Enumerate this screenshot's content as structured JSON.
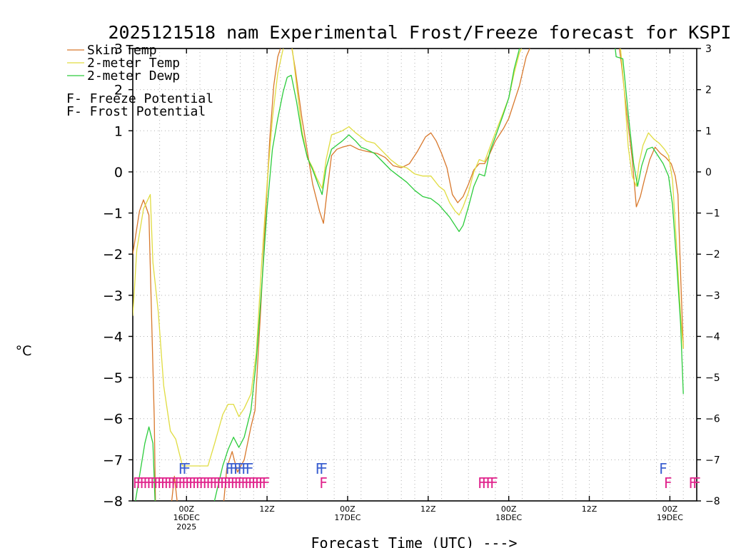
{
  "chart_data": {
    "type": "line",
    "title": "2025121518 nam Experimental Frost/Freeze forecast for KSPI",
    "ylabel": "°C",
    "xlabel": "Forecast Time (UTC) --->",
    "ylim": [
      -8,
      3
    ],
    "xlim": [
      -0.5,
      20.5
    ],
    "y_ticks": [
      3,
      2,
      1,
      0,
      -1,
      -2,
      -3,
      -4,
      -5,
      -6,
      -7,
      -8
    ],
    "y_tick_labels": [
      "3",
      "2",
      "1",
      "0",
      "−1",
      "−2",
      "−3",
      "−4",
      "−5",
      "−6",
      "−7",
      "−8"
    ],
    "x_ticks": [
      {
        "x": 1.5,
        "line1": "00Z",
        "line2": "16DEC",
        "line3": "2025"
      },
      {
        "x": 4.5,
        "line1": "12Z",
        "line2": "",
        "line3": ""
      },
      {
        "x": 7.5,
        "line1": "00Z",
        "line2": "17DEC",
        "line3": ""
      },
      {
        "x": 10.5,
        "line1": "12Z",
        "line2": "",
        "line3": ""
      },
      {
        "x": 13.5,
        "line1": "00Z",
        "line2": "18DEC",
        "line3": ""
      },
      {
        "x": 16.5,
        "line1": "12Z",
        "line2": "",
        "line3": ""
      },
      {
        "x": 19.5,
        "line1": "00Z",
        "line2": "19DEC",
        "line3": ""
      }
    ],
    "x_minor_grid": [
      0.5,
      2.0,
      3.0,
      3.5,
      4.0,
      5.0,
      6.0,
      7.0,
      8.0,
      9.0,
      9.5,
      10.0,
      11.0,
      12.0,
      13.0,
      14.0,
      15.0,
      15.5,
      16.0,
      17.0,
      18.0,
      19.0,
      20.0
    ],
    "series": [
      {
        "name": "Skin Temp",
        "color": "#d8782c",
        "points": [
          [
            -0.5,
            -2.0
          ],
          [
            -0.25,
            -0.95
          ],
          [
            -0.1,
            -0.68
          ],
          [
            0.1,
            -1.05
          ],
          [
            0.3,
            -6.0
          ],
          [
            0.35,
            -8.3
          ],
          [
            0.9,
            -8.3
          ],
          [
            1.05,
            -7.4
          ],
          [
            1.2,
            -8.3
          ],
          [
            2.85,
            -8.3
          ],
          [
            3.0,
            -7.2
          ],
          [
            3.2,
            -6.8
          ],
          [
            3.4,
            -7.3
          ],
          [
            3.65,
            -7.0
          ],
          [
            3.9,
            -6.2
          ],
          [
            4.05,
            -5.8
          ],
          [
            4.25,
            -3.5
          ],
          [
            4.45,
            -1.0
          ],
          [
            4.6,
            0.8
          ],
          [
            4.75,
            2.1
          ],
          [
            4.9,
            2.8
          ],
          [
            5.05,
            3.1
          ],
          [
            5.4,
            3.1
          ],
          [
            5.55,
            2.5
          ],
          [
            5.8,
            1.3
          ],
          [
            6.0,
            0.5
          ],
          [
            6.2,
            -0.3
          ],
          [
            6.45,
            -0.95
          ],
          [
            6.6,
            -1.25
          ],
          [
            6.75,
            -0.4
          ],
          [
            6.9,
            0.4
          ],
          [
            7.1,
            0.55
          ],
          [
            7.3,
            0.6
          ],
          [
            7.6,
            0.65
          ],
          [
            7.9,
            0.55
          ],
          [
            8.2,
            0.5
          ],
          [
            8.6,
            0.45
          ],
          [
            8.9,
            0.35
          ],
          [
            9.2,
            0.15
          ],
          [
            9.5,
            0.1
          ],
          [
            9.8,
            0.2
          ],
          [
            10.1,
            0.5
          ],
          [
            10.4,
            0.85
          ],
          [
            10.6,
            0.95
          ],
          [
            10.8,
            0.75
          ],
          [
            11.0,
            0.45
          ],
          [
            11.2,
            0.1
          ],
          [
            11.4,
            -0.55
          ],
          [
            11.6,
            -0.75
          ],
          [
            11.8,
            -0.6
          ],
          [
            12.0,
            -0.3
          ],
          [
            12.2,
            0.05
          ],
          [
            12.4,
            0.2
          ],
          [
            12.6,
            0.2
          ],
          [
            12.8,
            0.45
          ],
          [
            13.0,
            0.75
          ],
          [
            13.3,
            1.05
          ],
          [
            13.5,
            1.3
          ],
          [
            13.7,
            1.7
          ],
          [
            13.9,
            2.1
          ],
          [
            14.15,
            2.8
          ],
          [
            14.35,
            3.1
          ],
          [
            17.6,
            3.1
          ],
          [
            17.7,
            2.6
          ],
          [
            17.9,
            1.4
          ],
          [
            18.1,
            0.3
          ],
          [
            18.25,
            -0.85
          ],
          [
            18.4,
            -0.6
          ],
          [
            18.55,
            -0.2
          ],
          [
            18.75,
            0.3
          ],
          [
            18.95,
            0.6
          ],
          [
            19.15,
            0.45
          ],
          [
            19.35,
            0.35
          ],
          [
            19.55,
            0.2
          ],
          [
            19.7,
            -0.1
          ],
          [
            19.8,
            -0.55
          ],
          [
            19.9,
            -2.5
          ],
          [
            20.0,
            -4.3
          ]
        ]
      },
      {
        "name": "2-meter Temp",
        "color": "#e0dc40",
        "points": [
          [
            -0.5,
            -3.5
          ],
          [
            -0.35,
            -1.9
          ],
          [
            -0.1,
            -0.9
          ],
          [
            0.15,
            -0.55
          ],
          [
            0.25,
            -2.2
          ],
          [
            0.45,
            -3.4
          ],
          [
            0.65,
            -5.2
          ],
          [
            0.9,
            -6.3
          ],
          [
            1.1,
            -6.5
          ],
          [
            1.35,
            -7.15
          ],
          [
            1.7,
            -7.15
          ],
          [
            2.0,
            -7.15
          ],
          [
            2.3,
            -7.15
          ],
          [
            2.55,
            -6.6
          ],
          [
            2.85,
            -5.9
          ],
          [
            3.05,
            -5.65
          ],
          [
            3.25,
            -5.65
          ],
          [
            3.45,
            -5.95
          ],
          [
            3.65,
            -5.75
          ],
          [
            3.9,
            -5.4
          ],
          [
            4.1,
            -4.4
          ],
          [
            4.3,
            -2.2
          ],
          [
            4.5,
            -0.3
          ],
          [
            4.7,
            1.3
          ],
          [
            4.9,
            2.4
          ],
          [
            5.1,
            3.0
          ],
          [
            5.25,
            3.2
          ],
          [
            5.4,
            3.2
          ],
          [
            5.6,
            2.1
          ],
          [
            5.8,
            1.0
          ],
          [
            6.0,
            0.35
          ],
          [
            6.2,
            0.1
          ],
          [
            6.35,
            -0.15
          ],
          [
            6.55,
            -0.4
          ],
          [
            6.7,
            0.3
          ],
          [
            6.9,
            0.9
          ],
          [
            7.1,
            0.95
          ],
          [
            7.3,
            1.0
          ],
          [
            7.55,
            1.1
          ],
          [
            7.8,
            0.95
          ],
          [
            8.0,
            0.85
          ],
          [
            8.2,
            0.75
          ],
          [
            8.5,
            0.7
          ],
          [
            8.8,
            0.5
          ],
          [
            9.1,
            0.3
          ],
          [
            9.4,
            0.15
          ],
          [
            9.7,
            0.1
          ],
          [
            10.0,
            -0.05
          ],
          [
            10.3,
            -0.1
          ],
          [
            10.6,
            -0.1
          ],
          [
            10.9,
            -0.35
          ],
          [
            11.1,
            -0.45
          ],
          [
            11.3,
            -0.75
          ],
          [
            11.5,
            -0.95
          ],
          [
            11.65,
            -1.05
          ],
          [
            11.8,
            -0.85
          ],
          [
            12.0,
            -0.5
          ],
          [
            12.2,
            0.0
          ],
          [
            12.4,
            0.3
          ],
          [
            12.6,
            0.25
          ],
          [
            12.8,
            0.6
          ],
          [
            13.0,
            0.95
          ],
          [
            13.3,
            1.45
          ],
          [
            13.5,
            1.8
          ],
          [
            13.7,
            2.4
          ],
          [
            13.9,
            2.9
          ],
          [
            14.05,
            3.1
          ],
          [
            17.65,
            3.1
          ],
          [
            17.8,
            2.0
          ],
          [
            17.95,
            0.6
          ],
          [
            18.1,
            -0.1
          ],
          [
            18.25,
            -0.35
          ],
          [
            18.35,
            0.2
          ],
          [
            18.5,
            0.65
          ],
          [
            18.7,
            0.95
          ],
          [
            18.9,
            0.8
          ],
          [
            19.1,
            0.7
          ],
          [
            19.3,
            0.55
          ],
          [
            19.45,
            0.4
          ],
          [
            19.6,
            -0.2
          ],
          [
            19.75,
            -1.8
          ],
          [
            19.9,
            -3.5
          ],
          [
            20.0,
            -4.3
          ]
        ]
      },
      {
        "name": "2-meter Dewp",
        "color": "#2ccc3c",
        "points": [
          [
            -0.5,
            -8.4
          ],
          [
            -0.3,
            -7.6
          ],
          [
            -0.05,
            -6.6
          ],
          [
            0.1,
            -6.2
          ],
          [
            0.25,
            -6.6
          ],
          [
            0.35,
            -8.4
          ],
          [
            2.4,
            -8.4
          ],
          [
            2.65,
            -7.7
          ],
          [
            2.85,
            -7.15
          ],
          [
            3.05,
            -6.75
          ],
          [
            3.25,
            -6.45
          ],
          [
            3.45,
            -6.7
          ],
          [
            3.65,
            -6.45
          ],
          [
            3.9,
            -5.8
          ],
          [
            4.1,
            -4.6
          ],
          [
            4.3,
            -2.8
          ],
          [
            4.5,
            -0.9
          ],
          [
            4.7,
            0.55
          ],
          [
            4.9,
            1.3
          ],
          [
            5.1,
            1.95
          ],
          [
            5.25,
            2.3
          ],
          [
            5.4,
            2.35
          ],
          [
            5.6,
            1.7
          ],
          [
            5.8,
            0.9
          ],
          [
            6.0,
            0.35
          ],
          [
            6.2,
            0.05
          ],
          [
            6.4,
            -0.3
          ],
          [
            6.55,
            -0.55
          ],
          [
            6.7,
            0.1
          ],
          [
            6.9,
            0.55
          ],
          [
            7.1,
            0.65
          ],
          [
            7.3,
            0.75
          ],
          [
            7.55,
            0.9
          ],
          [
            7.8,
            0.75
          ],
          [
            8.0,
            0.6
          ],
          [
            8.2,
            0.55
          ],
          [
            8.5,
            0.45
          ],
          [
            8.8,
            0.25
          ],
          [
            9.1,
            0.05
          ],
          [
            9.4,
            -0.1
          ],
          [
            9.7,
            -0.25
          ],
          [
            10.0,
            -0.45
          ],
          [
            10.3,
            -0.6
          ],
          [
            10.6,
            -0.65
          ],
          [
            10.9,
            -0.8
          ],
          [
            11.1,
            -0.95
          ],
          [
            11.3,
            -1.1
          ],
          [
            11.5,
            -1.3
          ],
          [
            11.65,
            -1.45
          ],
          [
            11.8,
            -1.3
          ],
          [
            12.0,
            -0.85
          ],
          [
            12.2,
            -0.35
          ],
          [
            12.4,
            -0.05
          ],
          [
            12.6,
            -0.1
          ],
          [
            12.8,
            0.5
          ],
          [
            13.0,
            0.85
          ],
          [
            13.3,
            1.4
          ],
          [
            13.5,
            1.8
          ],
          [
            13.7,
            2.5
          ],
          [
            13.9,
            3.0
          ],
          [
            14.0,
            3.1
          ],
          [
            17.45,
            3.1
          ],
          [
            17.5,
            2.8
          ],
          [
            17.75,
            2.75
          ],
          [
            17.95,
            1.4
          ],
          [
            18.15,
            0.2
          ],
          [
            18.3,
            -0.35
          ],
          [
            18.45,
            0.15
          ],
          [
            18.65,
            0.55
          ],
          [
            18.85,
            0.6
          ],
          [
            19.05,
            0.4
          ],
          [
            19.25,
            0.2
          ],
          [
            19.45,
            -0.1
          ],
          [
            19.6,
            -0.8
          ],
          [
            19.75,
            -2.2
          ],
          [
            19.9,
            -3.7
          ],
          [
            20.0,
            -5.4
          ]
        ]
      }
    ],
    "freeze_flags": {
      "symbol": "F",
      "color": "#e0248c",
      "y": -7.55,
      "x": [
        -0.35,
        -0.22,
        -0.09,
        0.04,
        0.17,
        0.3,
        0.43,
        0.56,
        0.69,
        0.82,
        0.95,
        1.08,
        1.21,
        1.34,
        1.47,
        1.6,
        1.73,
        1.86,
        1.99,
        2.12,
        2.25,
        2.38,
        2.51,
        2.64,
        2.77,
        2.9,
        3.03,
        3.16,
        3.29,
        3.42,
        3.55,
        3.68,
        3.81,
        3.94,
        4.07,
        4.2,
        4.33,
        4.46,
        6.6,
        12.5,
        12.65,
        12.8,
        12.95,
        19.43,
        20.35,
        20.5
      ]
    },
    "frost_flags": {
      "symbol": "F",
      "color": "#3c60d0",
      "y": -7.2,
      "x": [
        1.35,
        1.5,
        3.1,
        3.25,
        3.4,
        3.55,
        3.7,
        3.85,
        6.45,
        6.6,
        19.25
      ]
    },
    "legend": [
      {
        "text": "Skin Temp",
        "color": "#d8782c",
        "type": "line"
      },
      {
        "text": "2-meter Temp",
        "color": "#e0dc40",
        "type": "line"
      },
      {
        "text": "2-meter Dewp",
        "color": "#2ccc3c",
        "type": "line"
      },
      {
        "text": "F",
        "desc": " - Freeze Potential",
        "color": "#e0248c",
        "type": "flag"
      },
      {
        "text": "F",
        "desc": " - Frost Potential",
        "color": "#3c60d0",
        "type": "flag"
      }
    ],
    "legend_position": "top-left",
    "grid": true
  }
}
